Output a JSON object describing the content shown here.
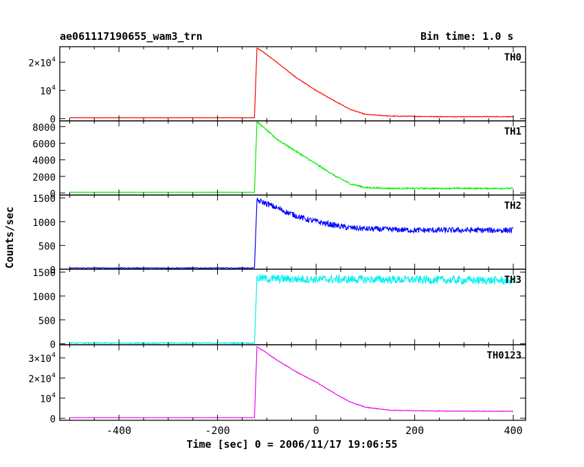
{
  "chart_data": {
    "type": "line",
    "title": "ae061117190655_wam3_trn",
    "subtitle": "Bin time: 1.0 s",
    "xlabel": "Time [sec] 0 = 2006/11/17 19:06:55",
    "ylabel": "Counts/sec",
    "xlim": [
      -520,
      425
    ],
    "x_ticks": [
      -400,
      -200,
      0,
      200,
      400
    ],
    "x_tick_labels": [
      "-400",
      "-200",
      "0",
      "200",
      "400"
    ],
    "grid": false,
    "panels": [
      {
        "name": "TH0",
        "color": "#ff0000",
        "ylim": [
          -800,
          25500
        ],
        "y_ticks": [
          0,
          10000,
          20000
        ],
        "y_tick_labels": [
          {
            "v": 0,
            "base": "0",
            "exp": ""
          },
          {
            "v": 10000,
            "base": "10",
            "exp": "4"
          },
          {
            "v": 20000,
            "base": "2×10",
            "exp": "4"
          }
        ],
        "noise": 120,
        "points": [
          [
            -520,
            300
          ],
          [
            -125,
            300
          ],
          [
            -120,
            25000
          ],
          [
            -110,
            24000
          ],
          [
            -80,
            20000
          ],
          [
            -40,
            14500
          ],
          [
            0,
            10000
          ],
          [
            40,
            6000
          ],
          [
            70,
            3200
          ],
          [
            100,
            1500
          ],
          [
            150,
            900
          ],
          [
            250,
            700
          ],
          [
            400,
            700
          ]
        ]
      },
      {
        "name": "TH1",
        "color": "#00ee00",
        "ylim": [
          -250,
          8700
        ],
        "y_ticks": [
          0,
          2000,
          4000,
          6000,
          8000
        ],
        "y_tick_labels": [
          {
            "v": 0,
            "base": "0",
            "exp": ""
          },
          {
            "v": 2000,
            "base": "2000",
            "exp": ""
          },
          {
            "v": 4000,
            "base": "4000",
            "exp": ""
          },
          {
            "v": 6000,
            "base": "6000",
            "exp": ""
          },
          {
            "v": 8000,
            "base": "8000",
            "exp": ""
          }
        ],
        "noise": 90,
        "points": [
          [
            -520,
            80
          ],
          [
            -125,
            80
          ],
          [
            -120,
            8600
          ],
          [
            -110,
            8100
          ],
          [
            -80,
            6500
          ],
          [
            -40,
            5000
          ],
          [
            0,
            3500
          ],
          [
            40,
            2000
          ],
          [
            70,
            1100
          ],
          [
            100,
            650
          ],
          [
            150,
            550
          ],
          [
            250,
            550
          ],
          [
            400,
            550
          ]
        ]
      },
      {
        "name": "TH2",
        "color": "#0000ff",
        "ylim": [
          0,
          1560
        ],
        "y_ticks": [
          0,
          500,
          1000,
          1500
        ],
        "y_tick_labels": [
          {
            "v": 0,
            "base": "0",
            "exp": ""
          },
          {
            "v": 500,
            "base": "500",
            "exp": ""
          },
          {
            "v": 1000,
            "base": "1000",
            "exp": ""
          },
          {
            "v": 1500,
            "base": "1500",
            "exp": ""
          }
        ],
        "noise": 60,
        "points": [
          [
            -520,
            25
          ],
          [
            -125,
            25
          ],
          [
            -120,
            1450
          ],
          [
            -100,
            1380
          ],
          [
            -60,
            1200
          ],
          [
            -20,
            1050
          ],
          [
            20,
            960
          ],
          [
            60,
            880
          ],
          [
            100,
            850
          ],
          [
            200,
            820
          ],
          [
            400,
            820
          ]
        ]
      },
      {
        "name": "TH3",
        "color": "#00f0f0",
        "ylim": [
          -20,
          1560
        ],
        "y_ticks": [
          0,
          500,
          1000,
          1500
        ],
        "y_tick_labels": [
          {
            "v": 0,
            "base": "0",
            "exp": ""
          },
          {
            "v": 500,
            "base": "500",
            "exp": ""
          },
          {
            "v": 1000,
            "base": "1000",
            "exp": ""
          },
          {
            "v": 1500,
            "base": "1500",
            "exp": ""
          }
        ],
        "noise": 85,
        "points": [
          [
            -520,
            15
          ],
          [
            -125,
            15
          ],
          [
            -120,
            1380
          ],
          [
            -100,
            1360
          ],
          [
            0,
            1350
          ],
          [
            200,
            1340
          ],
          [
            400,
            1320
          ]
        ]
      },
      {
        "name": "TH0123",
        "color": "#ee00ee",
        "ylim": [
          -1000,
          36500
        ],
        "y_ticks": [
          0,
          10000,
          20000,
          30000
        ],
        "y_tick_labels": [
          {
            "v": 0,
            "base": "0",
            "exp": ""
          },
          {
            "v": 10000,
            "base": "10",
            "exp": "4"
          },
          {
            "v": 20000,
            "base": "2×10",
            "exp": "4"
          },
          {
            "v": 30000,
            "base": "3×10",
            "exp": "4"
          }
        ],
        "noise": 150,
        "points": [
          [
            -520,
            300
          ],
          [
            -125,
            300
          ],
          [
            -120,
            35500
          ],
          [
            -110,
            34000
          ],
          [
            -80,
            29000
          ],
          [
            -40,
            23000
          ],
          [
            0,
            18000
          ],
          [
            40,
            12000
          ],
          [
            70,
            8000
          ],
          [
            100,
            5500
          ],
          [
            150,
            4000
          ],
          [
            250,
            3600
          ],
          [
            400,
            3500
          ]
        ]
      }
    ]
  }
}
